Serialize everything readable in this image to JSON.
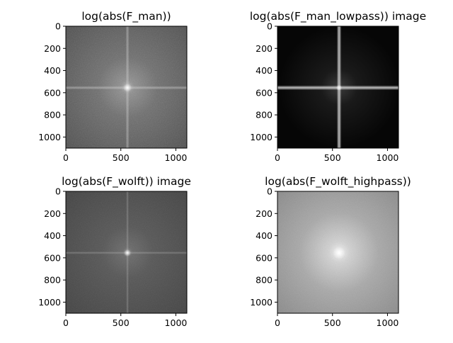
{
  "figure": {
    "width": 640,
    "height": 480
  },
  "chart_data": [
    {
      "type": "heatmap",
      "panel": "top-left",
      "title": "log(abs(F_man))",
      "image_size": [
        1100,
        1100
      ],
      "xlim": [
        0,
        1100
      ],
      "ylim": [
        1100,
        0
      ],
      "xticks": [
        0,
        500,
        1000
      ],
      "yticks": [
        0,
        200,
        400,
        600,
        800,
        1000
      ],
      "colormap": "gray",
      "style": "man",
      "center": [
        560,
        555
      ],
      "background_level": 0.38
    },
    {
      "type": "heatmap",
      "panel": "top-right",
      "title": "log(abs(F_man_lowpass)) image",
      "image_size": [
        1100,
        1100
      ],
      "xlim": [
        0,
        1100
      ],
      "ylim": [
        1100,
        0
      ],
      "xticks": [
        0,
        500,
        1000
      ],
      "yticks": [
        0,
        200,
        400,
        600,
        800,
        1000
      ],
      "colormap": "gray",
      "style": "lowpass",
      "center": [
        560,
        555
      ],
      "background_level": 0.03
    },
    {
      "type": "heatmap",
      "panel": "bottom-left",
      "title": "log(abs(F_wolft)) image",
      "image_size": [
        1100,
        1100
      ],
      "xlim": [
        0,
        1100
      ],
      "ylim": [
        1100,
        0
      ],
      "xticks": [
        0,
        500,
        1000
      ],
      "yticks": [
        0,
        200,
        400,
        600,
        800,
        1000
      ],
      "colormap": "gray",
      "style": "wolf",
      "center": [
        560,
        555
      ],
      "background_level": 0.3
    },
    {
      "type": "heatmap",
      "panel": "bottom-right",
      "title": "log(abs(F_wolft_highpass))",
      "image_size": [
        1100,
        1100
      ],
      "xlim": [
        0,
        1100
      ],
      "ylim": [
        1100,
        0
      ],
      "xticks": [
        0,
        500,
        1000
      ],
      "yticks": [
        0,
        200,
        400,
        600,
        800,
        1000
      ],
      "colormap": "gray",
      "style": "highpass",
      "center": [
        560,
        555
      ],
      "background_level": 0.6
    }
  ]
}
